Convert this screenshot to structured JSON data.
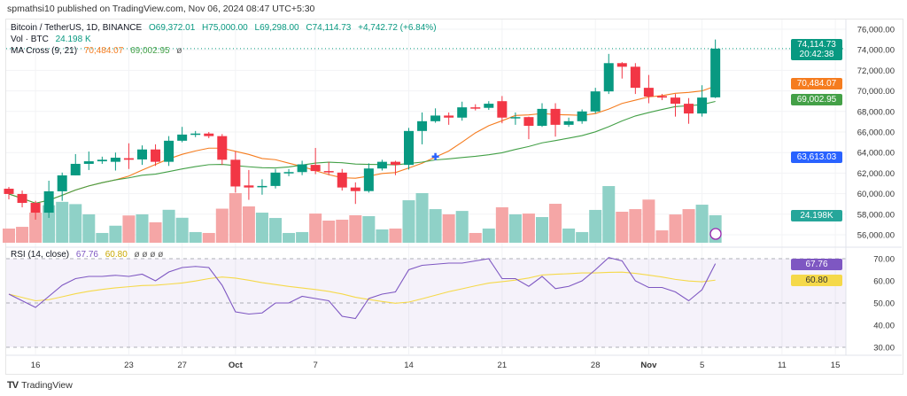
{
  "header": {
    "published": "spmathsi10 published on TradingView.com, Nov 06, 2024 08:47 UTC+5:30"
  },
  "legend": {
    "symbol": "Bitcoin / TetherUS, 1D, BINANCE",
    "open": "O69,372.01",
    "high": "H75,000.00",
    "low": "L69,298.00",
    "close": "C74,114.73",
    "change": "+4,742.72 (+6.84%)",
    "vol_label": "Vol · BTC",
    "vol_value": "24.198 K",
    "ma_label": "MA Cross (9, 21)",
    "ma_fast": "70,484.07",
    "ma_slow": "69,002.95",
    "ma_extra": "ø",
    "rsi_label": "RSI (14, close)",
    "rsi_value": "67.76",
    "rsi_ma": "60.80",
    "rsi_extra": "ø ø ø ø"
  },
  "tags": {
    "price": "74,114.73",
    "countdown": "20:42:38",
    "ma_fast": "70,484.07",
    "ma_slow": "69,002.95",
    "marker": "63,613.03",
    "volume": "24.198K",
    "rsi": "67.76",
    "rsi_ma": "60.80"
  },
  "colors": {
    "up": "#089981",
    "down": "#f23645",
    "vol_up": "#8fd1c7",
    "vol_down": "#f5a6a6",
    "ma_fast": "#f57c1f",
    "ma_slow": "#43a047",
    "rsi": "#7e57c2",
    "rsi_ma": "#f5d94a",
    "marker": "#2962ff"
  },
  "footer": {
    "brand": "TradingView"
  },
  "chart_data": {
    "type": "candlestick",
    "title": "Bitcoin / TetherUS, 1D, BINANCE",
    "price_axis": {
      "ticks": [
        56000,
        58000,
        60000,
        62000,
        64000,
        66000,
        68000,
        70000,
        72000,
        74000,
        76000
      ],
      "tick_labels": [
        "56,000.00",
        "58,000.00",
        "60,000.00",
        "62,000.00",
        "64,000.00",
        "66,000.00",
        "68,000.00",
        "70,000.00",
        "72,000.00",
        "74,000.00",
        "76,000.00"
      ],
      "range": [
        55600,
        76900
      ]
    },
    "date_axis": {
      "labels": [
        {
          "day": 2,
          "text": "16"
        },
        {
          "day": 9,
          "text": "23"
        },
        {
          "day": 13,
          "text": "27"
        },
        {
          "day": 17,
          "text": "Oct",
          "bold": true
        },
        {
          "day": 23,
          "text": "7"
        },
        {
          "day": 30,
          "text": "14"
        },
        {
          "day": 37,
          "text": "21"
        },
        {
          "day": 44,
          "text": "28"
        },
        {
          "day": 48,
          "text": "Nov",
          "bold": true
        },
        {
          "day": 52,
          "text": "5"
        },
        {
          "day": 58,
          "text": "11"
        },
        {
          "day": 62,
          "text": "15"
        }
      ]
    },
    "marker": {
      "day": 32,
      "price": 63613.03
    },
    "candles": [
      [
        60480,
        60650,
        59450,
        59970
      ],
      [
        59970,
        60300,
        58670,
        59100
      ],
      [
        59100,
        59300,
        57470,
        58150
      ],
      [
        58150,
        61260,
        57640,
        60230
      ],
      [
        60230,
        62050,
        59300,
        61780
      ],
      [
        61780,
        63850,
        61780,
        62900
      ],
      [
        62900,
        64100,
        62300,
        63150
      ],
      [
        63150,
        63600,
        62900,
        63300
      ],
      [
        63100,
        64000,
        62250,
        63500
      ],
      [
        63450,
        64900,
        62400,
        63300
      ],
      [
        63330,
        64700,
        62800,
        64300
      ],
      [
        64300,
        64800,
        62700,
        63100
      ],
      [
        63100,
        65600,
        62700,
        65150
      ],
      [
        65150,
        66500,
        65000,
        65750
      ],
      [
        65750,
        66100,
        65500,
        65850
      ],
      [
        65850,
        66000,
        65400,
        65600
      ],
      [
        65600,
        65800,
        62800,
        63300
      ],
      [
        63300,
        64100,
        60100,
        60700
      ],
      [
        60800,
        62300,
        59400,
        60600
      ],
      [
        60650,
        61400,
        59900,
        60750
      ],
      [
        60750,
        62400,
        60500,
        62050
      ],
      [
        62050,
        62400,
        61700,
        62100
      ],
      [
        62100,
        63200,
        61800,
        62850
      ],
      [
        62800,
        64450,
        61900,
        62200
      ],
      [
        62200,
        63100,
        61800,
        62100
      ],
      [
        62050,
        62400,
        60300,
        60600
      ],
      [
        60600,
        61100,
        59000,
        60250
      ],
      [
        60250,
        62950,
        60100,
        62450
      ],
      [
        62450,
        63300,
        62250,
        63100
      ],
      [
        63100,
        63200,
        61800,
        62800
      ],
      [
        62800,
        66400,
        62350,
        66100
      ],
      [
        66100,
        67900,
        64800,
        67050
      ],
      [
        67050,
        68300,
        66900,
        67600
      ],
      [
        67600,
        67900,
        66700,
        67400
      ],
      [
        67400,
        68950,
        67100,
        68400
      ],
      [
        68400,
        68700,
        68100,
        68350
      ],
      [
        68350,
        69000,
        68150,
        68750
      ],
      [
        69000,
        69500,
        66850,
        67400
      ],
      [
        67400,
        67900,
        66700,
        67450
      ],
      [
        67450,
        67500,
        65300,
        66600
      ],
      [
        66600,
        68800,
        66500,
        68250
      ],
      [
        68250,
        68800,
        65550,
        66700
      ],
      [
        66700,
        67400,
        66500,
        67050
      ],
      [
        67050,
        68200,
        66800,
        68000
      ],
      [
        68000,
        70300,
        67800,
        69950
      ],
      [
        69950,
        73600,
        69700,
        72700
      ],
      [
        72700,
        72800,
        71200,
        72350
      ],
      [
        72350,
        72700,
        69700,
        70300
      ],
      [
        70300,
        71550,
        68800,
        69450
      ],
      [
        69500,
        69700,
        69100,
        69350
      ],
      [
        69350,
        69700,
        67500,
        68750
      ],
      [
        68750,
        69300,
        66800,
        67800
      ],
      [
        67800,
        70550,
        67500,
        69350
      ],
      [
        69372.01,
        75000,
        69298,
        74114.73
      ]
    ],
    "volume_k": [
      12.5,
      14,
      26.5,
      33,
      36,
      34,
      25,
      8.6,
      15,
      24,
      25,
      18,
      29,
      22,
      9.4,
      8.6,
      30,
      43.7,
      32,
      26.5,
      21.8,
      8.6,
      9.4,
      25.7,
      19.5,
      20.3,
      24.2,
      23.4,
      11.7,
      12.5,
      37.4,
      43.7,
      29.6,
      25,
      28,
      8.6,
      12.5,
      31.2,
      25,
      25.7,
      22.6,
      34.3,
      12.5,
      9.4,
      28.9,
      49.9,
      27.3,
      29.6,
      38,
      10.9,
      24.9,
      29.6,
      33.5,
      24.2
    ],
    "rsi": [
      54,
      51,
      48,
      53,
      58,
      61,
      62,
      62,
      62.5,
      62,
      63,
      60,
      64,
      66,
      66.5,
      66,
      58,
      46,
      45,
      45.5,
      50,
      50,
      53,
      52,
      51,
      44,
      43,
      52,
      54,
      55,
      65,
      67,
      67.5,
      68,
      68,
      69,
      70,
      61,
      61,
      57.5,
      62,
      56.5,
      57.5,
      60,
      65,
      70.5,
      69,
      60,
      57,
      57,
      55,
      51,
      56,
      67.76
    ],
    "rsi_axis": {
      "ticks": [
        30,
        40,
        50,
        60,
        70
      ],
      "tick_labels": [
        "30.00",
        "40.00",
        "50.00",
        "60.00",
        "70.00"
      ],
      "band": [
        30,
        70
      ]
    },
    "ma_periods": [
      9,
      21
    ],
    "rsi_ma_period": 14
  }
}
